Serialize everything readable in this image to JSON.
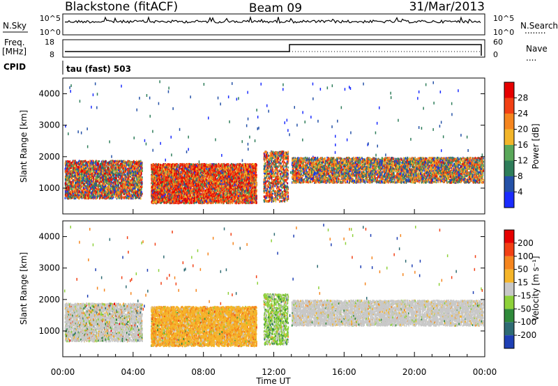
{
  "header": {
    "station": "Blackstone (fitACF)",
    "beam": "Beam 09",
    "date": "31/Mar/2013"
  },
  "noise_panel": {
    "left_label": "N.Sky",
    "right_label": "N.Search",
    "right_legend": "........",
    "left_ticks": [
      "10^5",
      "10^0"
    ],
    "right_ticks": [
      "10^5",
      "10^0"
    ]
  },
  "freq_panel": {
    "left_label_1": "Freq.",
    "left_label_2": "[MHz]",
    "right_label": "Nave",
    "right_legend": "....",
    "left_ticks": [
      "18",
      "8"
    ],
    "right_ticks": [
      "60",
      "0"
    ]
  },
  "cpid": {
    "label": "CPID",
    "value": "tau (fast) 503"
  },
  "chart_data": [
    {
      "type": "heatmap",
      "name": "power",
      "ylabel": "Slant Range [km]",
      "ylim": [
        180,
        4500
      ],
      "yticks": [
        1000,
        2000,
        3000,
        4000
      ],
      "colorbar": {
        "label": "Power [dB]",
        "ticks": [
          "4",
          "8",
          "12",
          "16",
          "20",
          "24",
          "28"
        ],
        "colors": [
          "#1a2bff",
          "#2451a7",
          "#2e7d5a",
          "#5aa85a",
          "#f2b52a",
          "#f5851e",
          "#f24014",
          "#e60000"
        ]
      },
      "echo_bands": [
        {
          "start": "00:00",
          "end": "04:00",
          "range_low": 700,
          "range_high": 2000
        },
        {
          "start": "05:00",
          "end": "11:00",
          "range_low": 600,
          "range_high": 1800
        },
        {
          "start": "11:30",
          "end": "12:40",
          "range_low": 600,
          "range_high": 2200
        },
        {
          "start": "13:00",
          "end": "23:59",
          "range_low": 1200,
          "range_high": 2000
        }
      ]
    },
    {
      "type": "heatmap",
      "name": "velocity",
      "ylabel": "Slant Range [km]",
      "xlabel": "Time UT",
      "ylim": [
        180,
        4500
      ],
      "yticks": [
        1000,
        2000,
        3000,
        4000
      ],
      "colorbar": {
        "label": "Velocity [m s⁻¹]",
        "ticks": [
          "200",
          "100",
          "50",
          "15",
          "-15",
          "-50",
          "-100",
          "-200"
        ],
        "colors": [
          "#1e3fb4",
          "#2e6b73",
          "#2f8a3a",
          "#8ed13a",
          "#c8c8c8",
          "#f5b52a",
          "#f5851e",
          "#f24014",
          "#e60000"
        ]
      },
      "xticks": [
        "00:00",
        "04:00",
        "08:00",
        "12:00",
        "16:00",
        "20:00",
        "00:00"
      ]
    }
  ]
}
